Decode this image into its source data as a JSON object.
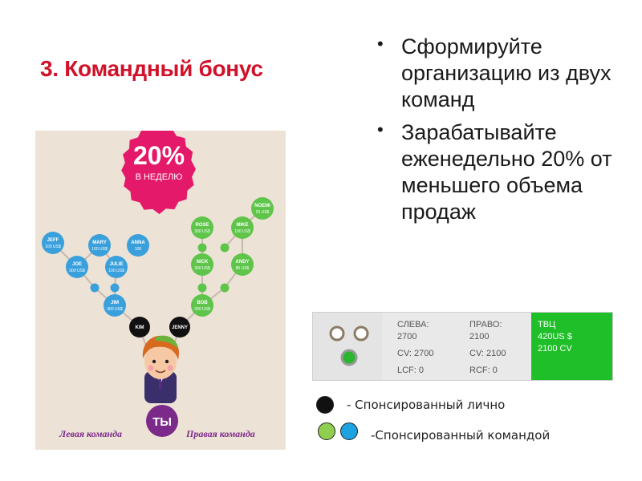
{
  "slide": {
    "title": "3. Командный бонус",
    "bullets": [
      "Сформируйте организацию из двух команд",
      "Зарабатывайте еженедельно 20% от меньшего объема продаж"
    ]
  },
  "diagram": {
    "badge_percent": "20%",
    "badge_caption": "В НЕДЕЛЮ",
    "nodes": [
      {
        "name": "JEFF",
        "amount": "100 US$"
      },
      {
        "name": "MARY",
        "amount": "100 US$"
      },
      {
        "name": "ANNA",
        "amount": "100"
      },
      {
        "name": "JOE",
        "amount": "300 US$"
      },
      {
        "name": "JULIE",
        "amount": "100 US$"
      },
      {
        "name": "JIM",
        "amount": "300 US$"
      },
      {
        "name": "NOEMI",
        "amount": "20 US$"
      },
      {
        "name": "ROSE",
        "amount": "300 US$"
      },
      {
        "name": "MIKE",
        "amount": "100 US$"
      },
      {
        "name": "NICK",
        "amount": "300 US$"
      },
      {
        "name": "ANDY",
        "amount": "80 US$"
      },
      {
        "name": "BOB",
        "amount": "300 US$"
      }
    ],
    "personal": [
      "KIM",
      "JENNY"
    ],
    "you_label": "ТЫ",
    "left_team": "Левая команда",
    "right_team": "Правая команда",
    "colors": {
      "blue": "#3aa0dc",
      "green": "#5ec54a",
      "pink": "#e4196a",
      "purple": "#7b2a8a",
      "black": "#111111"
    }
  },
  "panel": {
    "left": {
      "heading": "СЛЕВА:",
      "volume": "2700",
      "cv": "CV: 2700",
      "carry": "LCF: 0"
    },
    "right": {
      "heading": "ПРАВО:",
      "volume": "2100",
      "cv": "CV: 2100",
      "carry": "RCF: 0"
    },
    "total": {
      "heading": "ТВЦ",
      "amount": "420US $",
      "cv": "2100 CV"
    }
  },
  "legend": {
    "personal": "- Спонсированный лично",
    "team": "-Спонсированный командой",
    "colors": {
      "black": "#111111",
      "green": "#8fcf4f",
      "blue": "#1fa3e0"
    }
  }
}
